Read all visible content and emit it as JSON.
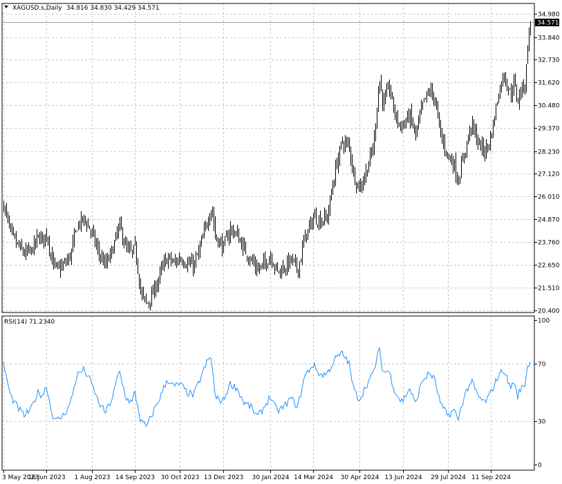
{
  "symbol_header": "XAGUSD.s,Daily",
  "ohlc_header": "34.816 34.830 34.429 34.571",
  "rsi_header": "RSI(14) 71.2340",
  "last_price_label": "34.571",
  "colors": {
    "background": "#ffffff",
    "grid": "#c8c8c8",
    "bars": "#000000",
    "rsi_line": "#1e90ff",
    "price_tag_bg": "#000000",
    "price_tag_text": "#ffffff"
  },
  "chart_data": [
    {
      "type": "bar",
      "title": "XAGUSD.s,Daily",
      "y_ticks": [
        "34.980",
        "33.840",
        "32.730",
        "31.620",
        "30.480",
        "29.370",
        "28.230",
        "27.120",
        "26.010",
        "24.870",
        "23.760",
        "22.650",
        "21.510",
        "20.400"
      ],
      "ylim": [
        20.4,
        34.98
      ],
      "x_ticks": [
        "3 May 2023",
        "16 Jun 2023",
        "1 Aug 2023",
        "14 Sep 2023",
        "30 Oct 2023",
        "13 Dec 2023",
        "30 Jan 2024",
        "14 Mar 2024",
        "30 Apr 2024",
        "13 Jun 2024",
        "29 Jul 2024",
        "11 Sep 2024"
      ],
      "grid": true,
      "last": 34.571,
      "close_path": [
        [
          "3 May 2023",
          25.6
        ],
        [
          "10 May 2023",
          24.2
        ],
        [
          "17 May 2023",
          23.6
        ],
        [
          "24 May 2023",
          23.2
        ],
        [
          "31 May 2023",
          23.3
        ],
        [
          "7 Jun 2023",
          24.0
        ],
        [
          "12 Jun 2023",
          23.9
        ],
        [
          "16 Jun 2023",
          24.2
        ],
        [
          "21 Jun 2023",
          22.9
        ],
        [
          "26 Jun 2023",
          22.4
        ],
        [
          "3 Jul 2023",
          22.6
        ],
        [
          "10 Jul 2023",
          23.1
        ],
        [
          "17 Jul 2023",
          24.6
        ],
        [
          "24 Jul 2023",
          24.9
        ],
        [
          "1 Aug 2023",
          24.2
        ],
        [
          "8 Aug 2023",
          23.2
        ],
        [
          "15 Aug 2023",
          22.6
        ],
        [
          "22 Aug 2023",
          23.4
        ],
        [
          "29 Aug 2023",
          24.6
        ],
        [
          "5 Sep 2023",
          23.4
        ],
        [
          "11 Sep 2023",
          23.2
        ],
        [
          "14 Sep 2023",
          23.5
        ],
        [
          "20 Sep 2023",
          21.2
        ],
        [
          "26 Sep 2023",
          20.7
        ],
        [
          "3 Oct 2023",
          21.3
        ],
        [
          "10 Oct 2023",
          22.3
        ],
        [
          "17 Oct 2023",
          23.0
        ],
        [
          "24 Oct 2023",
          22.7
        ],
        [
          "30 Oct 2023",
          23.0
        ],
        [
          "6 Nov 2023",
          22.7
        ],
        [
          "13 Nov 2023",
          22.6
        ],
        [
          "20 Nov 2023",
          23.6
        ],
        [
          "27 Nov 2023",
          24.9
        ],
        [
          "1 Dec 2023",
          25.5
        ],
        [
          "5 Dec 2023",
          24.0
        ],
        [
          "13 Dec 2023",
          23.5
        ],
        [
          "20 Dec 2023",
          24.4
        ],
        [
          "27 Dec 2023",
          24.1
        ],
        [
          "3 Jan 2024",
          23.4
        ],
        [
          "10 Jan 2024",
          22.9
        ],
        [
          "17 Jan 2024",
          22.4
        ],
        [
          "24 Jan 2024",
          22.7
        ],
        [
          "30 Jan 2024",
          23.1
        ],
        [
          "6 Feb 2024",
          22.3
        ],
        [
          "13 Feb 2024",
          22.5
        ],
        [
          "20 Feb 2024",
          22.9
        ],
        [
          "27 Feb 2024",
          22.4
        ],
        [
          "5 Mar 2024",
          24.0
        ],
        [
          "11 Mar 2024",
          24.6
        ],
        [
          "14 Mar 2024",
          25.0
        ],
        [
          "21 Mar 2024",
          24.8
        ],
        [
          "28 Mar 2024",
          25.0
        ],
        [
          "5 Apr 2024",
          27.3
        ],
        [
          "12 Apr 2024",
          28.7
        ],
        [
          "19 Apr 2024",
          28.5
        ],
        [
          "24 Apr 2024",
          27.0
        ],
        [
          "30 Apr 2024",
          26.4
        ],
        [
          "7 May 2024",
          27.3
        ],
        [
          "14 May 2024",
          28.5
        ],
        [
          "20 May 2024",
          31.8
        ],
        [
          "24 May 2024",
          30.5
        ],
        [
          "30 May 2024",
          31.4
        ],
        [
          "5 Jun 2024",
          30.0
        ],
        [
          "10 Jun 2024",
          29.5
        ],
        [
          "13 Jun 2024",
          29.5
        ],
        [
          "20 Jun 2024",
          30.0
        ],
        [
          "26 Jun 2024",
          29.0
        ],
        [
          "3 Jul 2024",
          30.5
        ],
        [
          "10 Jul 2024",
          31.2
        ],
        [
          "15 Jul 2024",
          30.9
        ],
        [
          "22 Jul 2024",
          28.9
        ],
        [
          "29 Jul 2024",
          28.0
        ],
        [
          "5 Aug 2024",
          27.5
        ],
        [
          "8 Aug 2024",
          26.7
        ],
        [
          "15 Aug 2024",
          28.2
        ],
        [
          "22 Aug 2024",
          29.6
        ],
        [
          "29 Aug 2024",
          28.6
        ],
        [
          "5 Sep 2024",
          28.2
        ],
        [
          "11 Sep 2024",
          29.0
        ],
        [
          "18 Sep 2024",
          31.0
        ],
        [
          "24 Sep 2024",
          32.1
        ],
        [
          "27 Sep 2024",
          31.5
        ],
        [
          "1 Oct 2024",
          31.0
        ],
        [
          "4 Oct 2024",
          31.6
        ],
        [
          "8 Oct 2024",
          30.7
        ],
        [
          "11 Oct 2024",
          31.2
        ],
        [
          "16 Oct 2024",
          31.6
        ],
        [
          "18 Oct 2024",
          33.5
        ],
        [
          "21 Oct 2024",
          34.571
        ]
      ]
    },
    {
      "type": "line",
      "title": "RSI(14) 71.2340",
      "y_ticks": [
        "100",
        "70",
        "30",
        "0"
      ],
      "ylim": [
        0,
        100
      ],
      "grid": true,
      "last": 71.234,
      "rsi_path": [
        [
          "3 May 2023",
          70
        ],
        [
          "10 May 2023",
          48
        ],
        [
          "17 May 2023",
          40
        ],
        [
          "24 May 2023",
          34
        ],
        [
          "31 May 2023",
          38
        ],
        [
          "7 Jun 2023",
          50
        ],
        [
          "12 Jun 2023",
          48
        ],
        [
          "16 Jun 2023",
          55
        ],
        [
          "21 Jun 2023",
          36
        ],
        [
          "26 Jun 2023",
          30
        ],
        [
          "3 Jul 2023",
          34
        ],
        [
          "10 Jul 2023",
          42
        ],
        [
          "17 Jul 2023",
          62
        ],
        [
          "24 Jul 2023",
          66
        ],
        [
          "1 Aug 2023",
          56
        ],
        [
          "8 Aug 2023",
          43
        ],
        [
          "15 Aug 2023",
          36
        ],
        [
          "22 Aug 2023",
          46
        ],
        [
          "29 Aug 2023",
          65
        ],
        [
          "5 Sep 2023",
          46
        ],
        [
          "11 Sep 2023",
          43
        ],
        [
          "14 Sep 2023",
          50
        ],
        [
          "20 Sep 2023",
          30
        ],
        [
          "26 Sep 2023",
          26
        ],
        [
          "3 Oct 2023",
          37
        ],
        [
          "10 Oct 2023",
          47
        ],
        [
          "17 Oct 2023",
          59
        ],
        [
          "24 Oct 2023",
          54
        ],
        [
          "30 Oct 2023",
          56
        ],
        [
          "6 Nov 2023",
          50
        ],
        [
          "13 Nov 2023",
          48
        ],
        [
          "20 Nov 2023",
          60
        ],
        [
          "27 Nov 2023",
          72
        ],
        [
          "1 Dec 2023",
          74
        ],
        [
          "5 Dec 2023",
          46
        ],
        [
          "13 Dec 2023",
          44
        ],
        [
          "20 Dec 2023",
          56
        ],
        [
          "27 Dec 2023",
          53
        ],
        [
          "3 Jan 2024",
          43
        ],
        [
          "10 Jan 2024",
          40
        ],
        [
          "17 Jan 2024",
          33
        ],
        [
          "24 Jan 2024",
          40
        ],
        [
          "30 Jan 2024",
          47
        ],
        [
          "6 Feb 2024",
          37
        ],
        [
          "13 Feb 2024",
          40
        ],
        [
          "20 Feb 2024",
          46
        ],
        [
          "27 Feb 2024",
          40
        ],
        [
          "5 Mar 2024",
          61
        ],
        [
          "11 Mar 2024",
          67
        ],
        [
          "14 Mar 2024",
          69
        ],
        [
          "21 Mar 2024",
          62
        ],
        [
          "28 Mar 2024",
          63
        ],
        [
          "5 Apr 2024",
          73
        ],
        [
          "12 Apr 2024",
          77
        ],
        [
          "19 Apr 2024",
          71
        ],
        [
          "24 Apr 2024",
          52
        ],
        [
          "30 Apr 2024",
          45
        ],
        [
          "7 May 2024",
          55
        ],
        [
          "14 May 2024",
          63
        ],
        [
          "20 May 2024",
          80
        ],
        [
          "24 May 2024",
          64
        ],
        [
          "30 May 2024",
          65
        ],
        [
          "5 Jun 2024",
          51
        ],
        [
          "10 Jun 2024",
          45
        ],
        [
          "13 Jun 2024",
          44
        ],
        [
          "20 Jun 2024",
          53
        ],
        [
          "26 Jun 2024",
          42
        ],
        [
          "3 Jul 2024",
          58
        ],
        [
          "10 Jul 2024",
          63
        ],
        [
          "15 Jul 2024",
          60
        ],
        [
          "22 Jul 2024",
          41
        ],
        [
          "29 Jul 2024",
          34
        ],
        [
          "5 Aug 2024",
          38
        ],
        [
          "8 Aug 2024",
          30
        ],
        [
          "15 Aug 2024",
          48
        ],
        [
          "22 Aug 2024",
          58
        ],
        [
          "29 Aug 2024",
          47
        ],
        [
          "5 Sep 2024",
          43
        ],
        [
          "11 Sep 2024",
          50
        ],
        [
          "18 Sep 2024",
          61
        ],
        [
          "24 Sep 2024",
          66
        ],
        [
          "27 Sep 2024",
          60
        ],
        [
          "1 Oct 2024",
          53
        ],
        [
          "4 Oct 2024",
          58
        ],
        [
          "8 Oct 2024",
          47
        ],
        [
          "11 Oct 2024",
          52
        ],
        [
          "16 Oct 2024",
          56
        ],
        [
          "18 Oct 2024",
          68
        ],
        [
          "21 Oct 2024",
          71.234
        ]
      ]
    }
  ]
}
